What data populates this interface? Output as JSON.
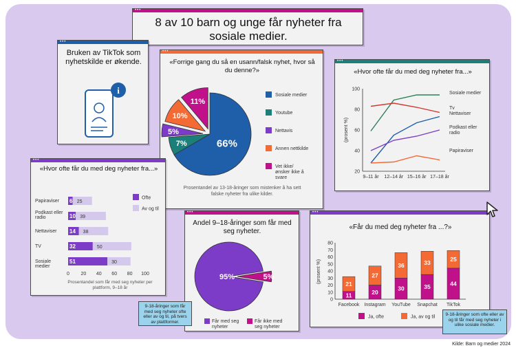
{
  "headline": "8 av 10 barn og unge får nyheter fra sosiale medier.",
  "tiktok_card": {
    "text": "Bruken av TikTok som nyhetskilde er økende."
  },
  "source": "Kilde: Barn og medier 2024",
  "colors": {
    "purple": "#7d3cc8",
    "magenta": "#c0108a",
    "orange": "#f46a35",
    "blue": "#1f5ea8",
    "teal": "#1c7f7a",
    "lightPurple": "#d4c8ec",
    "green": "#2e7d57",
    "red": "#d3382f"
  },
  "chart_data": [
    {
      "id": "pie_fake_news",
      "type": "pie",
      "title": "«Forrige gang du så en usann/falsk nyhet, hvor så du denne?»",
      "note": "Prosentandel av 13-18-åringer som mistenker å ha sett falske nyheter fra ulike kilder.",
      "labels": [
        "Sosiale medier",
        "Youtube",
        "Nettavis",
        "Annen nettkilde",
        "Vet ikke/ ønsker ikke å svare"
      ],
      "values": [
        66,
        7,
        5,
        10,
        11
      ],
      "value_labels": [
        "66%",
        "7%",
        "5%",
        "10%",
        "11%"
      ],
      "colors": [
        "#1f5ea8",
        "#1c7f7a",
        "#7d3cc8",
        "#f46a35",
        "#c0108a"
      ]
    },
    {
      "id": "line_frequency",
      "type": "line",
      "title": "«Hvor ofte får du med deg nyheter fra...»",
      "categories": [
        "9–11 år",
        "12–14 år",
        "15–16 år",
        "17–18 år"
      ],
      "ylabel": "(prosent %)",
      "ylim": [
        20,
        100
      ],
      "yticks": [
        "20",
        "40",
        "60",
        "80",
        "100"
      ],
      "series": [
        {
          "name": "Sosiale medier",
          "values": [
            59,
            89,
            94,
            94
          ],
          "color": "#2e7d57"
        },
        {
          "name": "Tv",
          "values": [
            83,
            86,
            82,
            77
          ],
          "color": "#d3382f"
        },
        {
          "name": "Nettaviser",
          "values": [
            28,
            55,
            67,
            73
          ],
          "color": "#1f5ea8"
        },
        {
          "name": "Podkast eller radio",
          "values": [
            40,
            50,
            54,
            60
          ],
          "color": "#7d3cc8"
        },
        {
          "name": "Papiraviser",
          "values": [
            28,
            29,
            35,
            31
          ],
          "color": "#f46a35"
        }
      ]
    },
    {
      "id": "hbar_frequency",
      "type": "bar",
      "title": "«Hvor ofte får du med deg nyheter fra...»",
      "note": "Prosentandel som får med seg nyheter per plattform, 9–18 år",
      "categories": [
        "Papiraviser",
        "Podkast eller radio",
        "Nettaviser",
        "TV",
        "Sosiale medier"
      ],
      "xticks": [
        "0",
        "20",
        "40",
        "60",
        "80",
        "100"
      ],
      "xlim": [
        0,
        100
      ],
      "series": [
        {
          "name": "Ofte",
          "values": [
            6,
            10,
            14,
            32,
            51
          ],
          "color": "#7d3cc8"
        },
        {
          "name": "Av og til",
          "values": [
            25,
            39,
            38,
            50,
            30
          ],
          "color": "#d4c8ec"
        }
      ]
    },
    {
      "id": "pie_share",
      "type": "pie",
      "title": "Andel 9–18-åringer som får med seg nyheter.",
      "labels": [
        "Får med seg nyheter",
        "Får ikke med seg nyheter"
      ],
      "values": [
        95,
        5
      ],
      "value_labels": [
        "95%",
        "5%"
      ],
      "colors": [
        "#7d3cc8",
        "#c0108a"
      ],
      "callout": "9-18-åringer som får med seg nyheter ofte eller av og til, på tvers av plattformer."
    },
    {
      "id": "stacked_platforms",
      "type": "bar",
      "title": "«Får du med deg nyheter fra ...?»",
      "ylabel": "(prosent %)",
      "ylim": [
        0,
        80
      ],
      "yticks": [
        "0",
        "10",
        "20",
        "30",
        "40",
        "50",
        "60",
        "70",
        "80"
      ],
      "categories": [
        "Facebook",
        "Instagram",
        "YouTube",
        "Snapchat",
        "TikTok"
      ],
      "series": [
        {
          "name": "Ja, ofte",
          "values": [
            11,
            20,
            30,
            35,
            44
          ],
          "color": "#c0108a"
        },
        {
          "name": "Ja, av og til",
          "values": [
            21,
            27,
            36,
            33,
            25
          ],
          "color": "#f46a35"
        }
      ],
      "callout": "9-18-åringer som ofte eller av og til får med seg nyheter i ulike sosiale medier."
    }
  ]
}
